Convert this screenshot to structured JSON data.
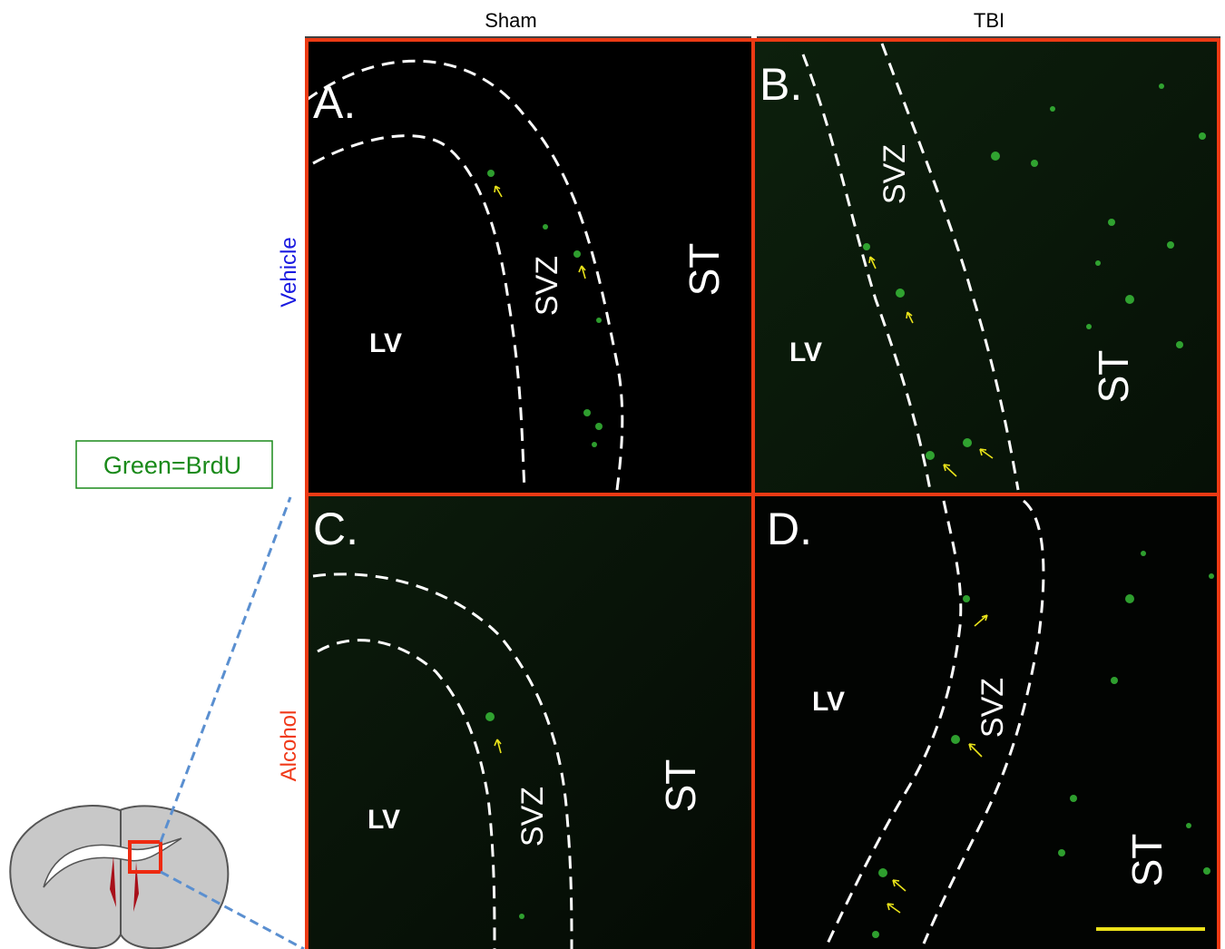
{
  "columns": [
    "Sham",
    "TBI"
  ],
  "rows": [
    "Vehicle",
    "Alcohol"
  ],
  "legend": "Green=BrdU",
  "panels": [
    {
      "label": "A.",
      "regions": [
        "LV",
        "SVZ",
        "ST"
      ]
    },
    {
      "label": "B.",
      "regions": [
        "LV",
        "SVZ",
        "ST"
      ]
    },
    {
      "label": "C.",
      "regions": [
        "LV",
        "SVZ",
        "ST"
      ]
    },
    {
      "label": "D.",
      "regions": [
        "LV",
        "SVZ",
        "ST"
      ]
    }
  ]
}
